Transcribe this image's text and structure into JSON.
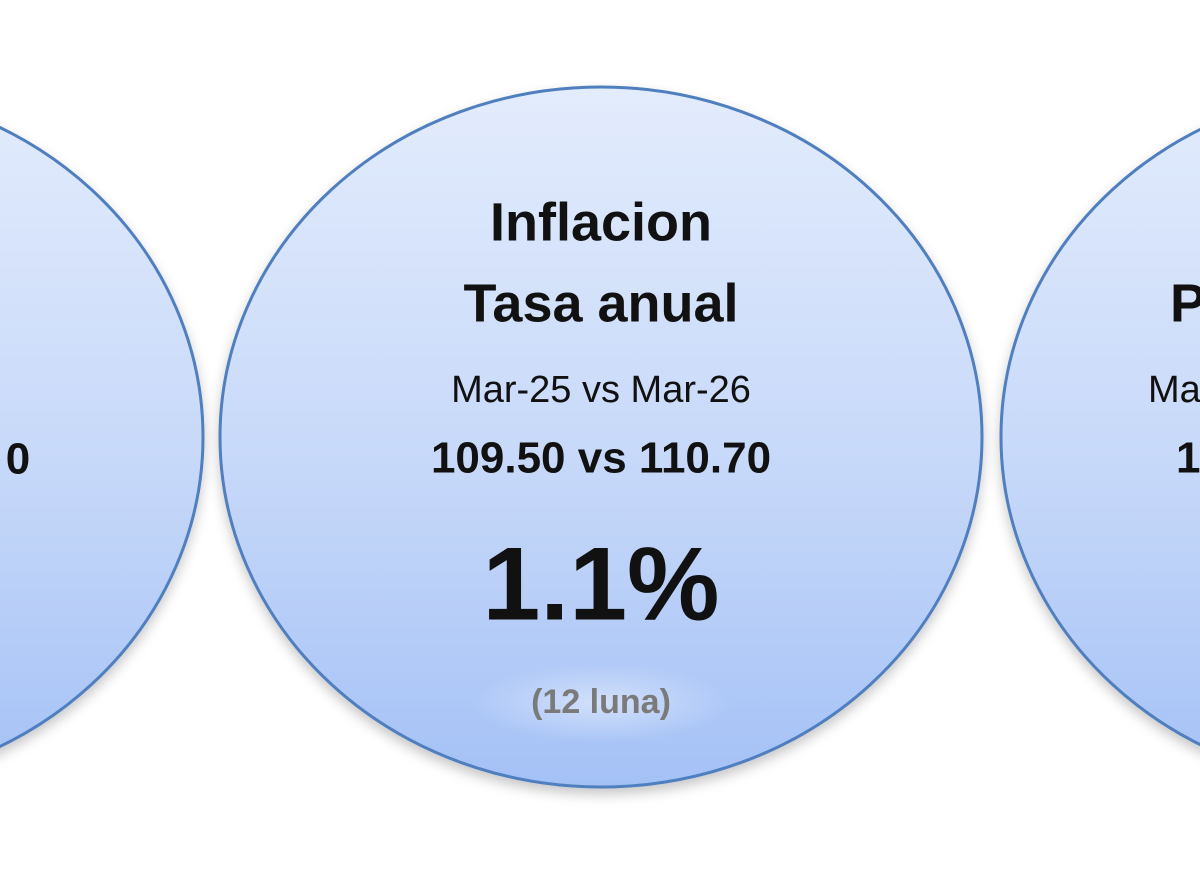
{
  "circles": [
    {
      "values": "0"
    },
    {
      "title": [
        "Inflacion",
        "Tasa anual"
      ],
      "period": "Mar-25 vs Mar-26",
      "values": "109.50 vs 110.70",
      "rate": "1.1%",
      "note": "(12 luna)"
    },
    {
      "title": "P",
      "period": "Ma",
      "values": "1"
    }
  ]
}
